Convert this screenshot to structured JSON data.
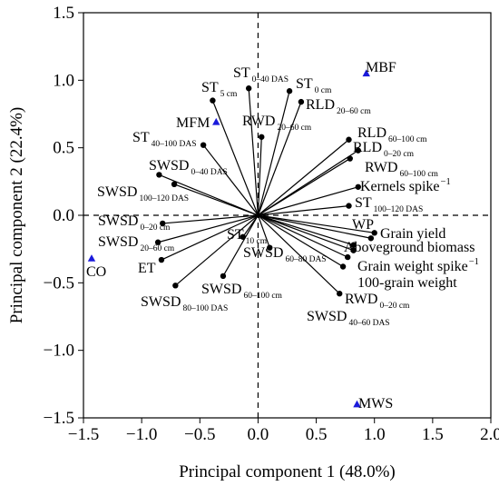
{
  "chart_data": {
    "type": "scatter",
    "subtype": "pca-biplot",
    "xlabel": "Principal component 1 (48.0%)",
    "ylabel": "Principal component 2 (22.4%)",
    "xlim": [
      -1.5,
      2.0
    ],
    "ylim": [
      -1.5,
      1.5
    ],
    "x_ticks": [
      -1.5,
      -1.0,
      -0.5,
      0.0,
      0.5,
      1.0,
      1.5,
      2.0
    ],
    "y_ticks": [
      -1.5,
      -1.0,
      -0.5,
      0.0,
      0.5,
      1.0,
      1.5
    ],
    "x_tick_labels": [
      "−1.5",
      "−1.0",
      "−0.5",
      "0.0",
      "0.5",
      "1.0",
      "1.5",
      "2.0"
    ],
    "y_tick_labels": [
      "−1.5",
      "−1.0",
      "−0.5",
      "0.0",
      "0.5",
      "1.0",
      "1.5"
    ],
    "grid": false,
    "reference_lines": {
      "x": 0,
      "y": 0,
      "style": "dashed"
    },
    "colors": {
      "vector": "#000000",
      "treatment": "#1a1adb",
      "axis": "#000000"
    },
    "vectors": [
      {
        "base": "ST",
        "sub": "0–40 DAS",
        "x": -0.08,
        "y": 0.94
      },
      {
        "base": "ST",
        "sub": "0 cm",
        "x": 0.27,
        "y": 0.92
      },
      {
        "base": "RLD",
        "sub": "20–60 cm",
        "x": 0.37,
        "y": 0.84
      },
      {
        "base": "ST",
        "sub": "5 cm",
        "x": -0.39,
        "y": 0.85
      },
      {
        "base": "RWD",
        "sub": "20–60 cm",
        "x": 0.03,
        "y": 0.58
      },
      {
        "base": "ST",
        "sub": "40–100 DAS",
        "x": -0.47,
        "y": 0.52
      },
      {
        "base": "RLD",
        "sub": "60–100 cm",
        "x": 0.78,
        "y": 0.56
      },
      {
        "base": "RLD",
        "sub": "0–20 cm",
        "x": 0.86,
        "y": 0.48
      },
      {
        "base": "RWD",
        "sub": "60–100 cm",
        "x": 0.79,
        "y": 0.42
      },
      {
        "base": "SWSD",
        "sub": "0–40 DAS",
        "x": -0.85,
        "y": 0.3
      },
      {
        "base": "SWSD",
        "sub": "100–120 DAS",
        "x": -0.72,
        "y": 0.23
      },
      {
        "base": "Kernels spike",
        "sup": "−1",
        "x": 0.86,
        "y": 0.21
      },
      {
        "base": "ST",
        "sub": "100–120 DAS",
        "x": 0.78,
        "y": 0.07
      },
      {
        "base": "SWSD",
        "sub": "0–20 cm",
        "x": -0.82,
        "y": -0.06
      },
      {
        "base": "WP",
        "x": 1.0,
        "y": -0.13
      },
      {
        "base": "Grain yield",
        "x": 0.97,
        "y": -0.17
      },
      {
        "base": "SWSD",
        "sub": "20–60 cm",
        "x": -0.86,
        "y": -0.2
      },
      {
        "base": "ST",
        "sub": "10 cm",
        "x": -0.13,
        "y": -0.16
      },
      {
        "base": "Aboveground biomass",
        "x": 0.82,
        "y": -0.22
      },
      {
        "base": "SWSD",
        "sub": "60–80 DAS",
        "x": 0.1,
        "y": -0.24
      },
      {
        "base": "Grain weight spike",
        "sup": "−1",
        "x": 0.82,
        "y": -0.26
      },
      {
        "base": "ET",
        "x": -0.83,
        "y": -0.33
      },
      {
        "base": "100-grain weight",
        "x": 0.77,
        "y": -0.31
      },
      {
        "base": "SWSD",
        "sub": "60–100 cm",
        "x": -0.3,
        "y": -0.45
      },
      {
        "base": "SWSD",
        "sub": "80–100 DAS",
        "x": -0.71,
        "y": -0.52
      },
      {
        "base": "RWD",
        "sub": "0–20 cm",
        "x": 0.73,
        "y": -0.38
      },
      {
        "base": "SWSD",
        "sub": "40–60 DAS",
        "x": 0.7,
        "y": -0.58
      }
    ],
    "treatments": [
      {
        "name": "MBF",
        "x": 0.93,
        "y": 1.05
      },
      {
        "name": "MFM",
        "x": -0.36,
        "y": 0.69
      },
      {
        "name": "CO",
        "x": -1.43,
        "y": -0.32
      },
      {
        "name": "MWS",
        "x": 0.85,
        "y": -1.4
      }
    ]
  }
}
